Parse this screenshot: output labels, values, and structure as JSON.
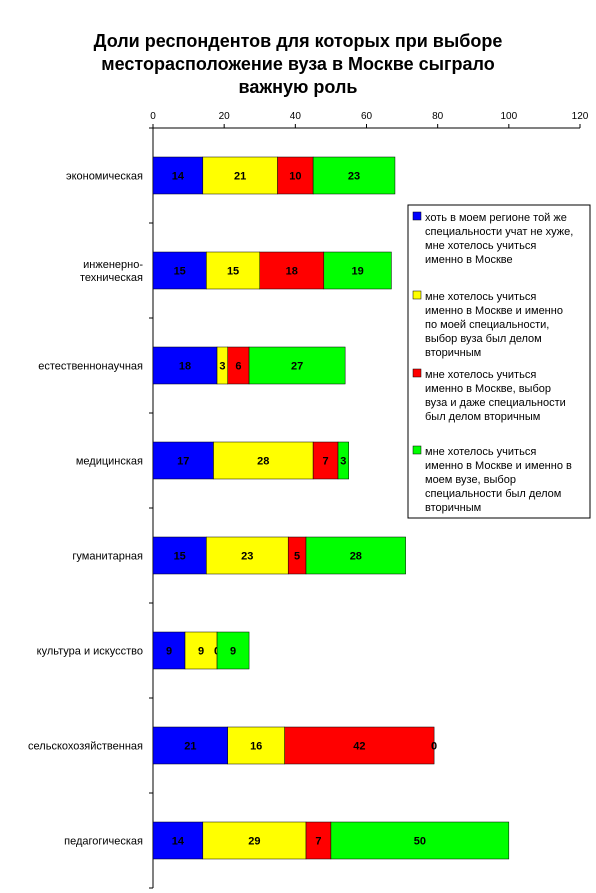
{
  "chart_data": {
    "type": "bar",
    "orientation": "horizontal",
    "stacked": true,
    "title": "Доли респондентов для которых при выборе месторасположение вуза в Москве сыграло важную роль",
    "title_lines": [
      "Доли респондентов для которых при выборе",
      "месторасположение вуза в Москве сыграло",
      "важную роль"
    ],
    "xlim": [
      0,
      120
    ],
    "x_ticks": [
      0,
      20,
      40,
      60,
      80,
      100,
      120
    ],
    "x_axis_position": "top",
    "grid": false,
    "legend_position": "right",
    "categories": [
      "экономическая",
      "инженерно-техническая",
      "естественнонаучная",
      "медицинская",
      "гуманитарная",
      "культура и искусство",
      "сельскохозяйственная",
      "педагогическая"
    ],
    "category_lines": [
      [
        "экономическая"
      ],
      [
        "инженерно-",
        "техническая"
      ],
      [
        "естественнонаучная"
      ],
      [
        "медицинская"
      ],
      [
        "гуманитарная"
      ],
      [
        "культура и искусство"
      ],
      [
        "сельскохозяйственная"
      ],
      [
        "педагогическая"
      ]
    ],
    "series": [
      {
        "name": "хоть в моем регионе той же специальности учат не хуже, мне хотелось учиться именно в Москве",
        "name_lines": [
          "хоть в моем регионе той же",
          "специальности учат не хуже,",
          "мне хотелось учиться",
          "именно в Москве"
        ],
        "color": "#0000FF",
        "values": [
          14,
          15,
          18,
          17,
          15,
          9,
          21,
          14
        ]
      },
      {
        "name": "мне хотелось учиться именно в Москве и именно по моей специальности, выбор вуза был делом вторичным",
        "name_lines": [
          "мне хотелось учиться",
          "именно в Москве и именно",
          "по моей специальности,",
          "выбор вуза был делом",
          "вторичным"
        ],
        "color": "#FFFF00",
        "values": [
          21,
          15,
          3,
          28,
          23,
          9,
          16,
          29
        ]
      },
      {
        "name": "мне хотелось учиться именно в Москве, выбор вуза и даже специальности был делом вторичным",
        "name_lines": [
          "мне хотелось учиться",
          "именно в Москве, выбор",
          "вуза и даже специальности",
          "был делом вторичным"
        ],
        "color": "#FF0000",
        "values": [
          10,
          18,
          6,
          7,
          5,
          0,
          42,
          7
        ]
      },
      {
        "name": "мне хотелось учиться именно в Москве и именно в моем вузе, выбор специальности был делом вторичным",
        "name_lines": [
          "мне хотелось учиться",
          "именно в Москве и именно в",
          "моем вузе, выбор",
          "специальности был делом",
          "вторичным"
        ],
        "color": "#00FF00",
        "values": [
          23,
          19,
          27,
          3,
          28,
          9,
          0,
          50
        ]
      }
    ]
  }
}
